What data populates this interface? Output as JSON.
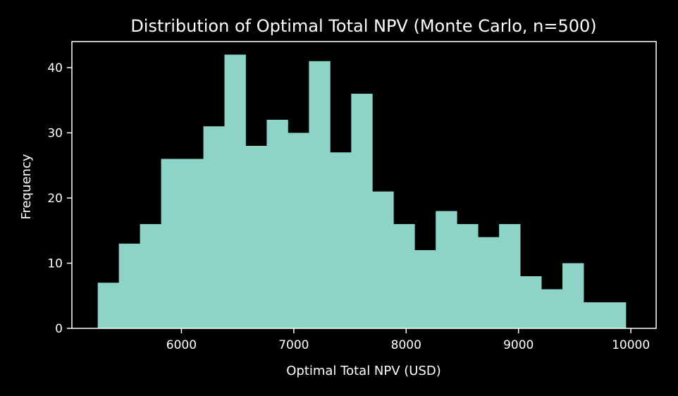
{
  "colors": {
    "background": "#000000",
    "bar": "#8dd3c7",
    "text": "#ffffff",
    "axis": "#ffffff"
  },
  "chart_data": {
    "type": "bar",
    "subtype": "histogram",
    "title": "Distribution of Optimal Total NPV (Monte Carlo, n=500)",
    "xlabel": "Optimal Total NPV (USD)",
    "ylabel": "Frequency",
    "xlim": [
      5025,
      10225
    ],
    "ylim": [
      0,
      44
    ],
    "xticks": [
      6000,
      7000,
      8000,
      9000,
      10000
    ],
    "xtick_labels": [
      "6000",
      "7000",
      "8000",
      "9000",
      "10000"
    ],
    "yticks": [
      0,
      10,
      20,
      30,
      40
    ],
    "ytick_labels": [
      "0",
      "10",
      "20",
      "30",
      "40"
    ],
    "grid": false,
    "bins": [
      {
        "x0": 5255,
        "x1": 5443,
        "count": 7
      },
      {
        "x0": 5443,
        "x1": 5631,
        "count": 13
      },
      {
        "x0": 5631,
        "x1": 5819,
        "count": 16
      },
      {
        "x0": 5819,
        "x1": 6007,
        "count": 26
      },
      {
        "x0": 6007,
        "x1": 6195,
        "count": 26
      },
      {
        "x0": 6195,
        "x1": 6383,
        "count": 31
      },
      {
        "x0": 6383,
        "x1": 6571,
        "count": 42
      },
      {
        "x0": 6571,
        "x1": 6759,
        "count": 28
      },
      {
        "x0": 6759,
        "x1": 6947,
        "count": 32
      },
      {
        "x0": 6947,
        "x1": 7135,
        "count": 30
      },
      {
        "x0": 7135,
        "x1": 7323,
        "count": 41
      },
      {
        "x0": 7323,
        "x1": 7511,
        "count": 27
      },
      {
        "x0": 7511,
        "x1": 7699,
        "count": 36
      },
      {
        "x0": 7699,
        "x1": 7887,
        "count": 21
      },
      {
        "x0": 7887,
        "x1": 8075,
        "count": 16
      },
      {
        "x0": 8075,
        "x1": 8263,
        "count": 12
      },
      {
        "x0": 8263,
        "x1": 8451,
        "count": 18
      },
      {
        "x0": 8451,
        "x1": 8639,
        "count": 16
      },
      {
        "x0": 8639,
        "x1": 8827,
        "count": 14
      },
      {
        "x0": 8827,
        "x1": 9015,
        "count": 16
      },
      {
        "x0": 9015,
        "x1": 9203,
        "count": 8
      },
      {
        "x0": 9203,
        "x1": 9391,
        "count": 6
      },
      {
        "x0": 9391,
        "x1": 9579,
        "count": 10
      },
      {
        "x0": 9579,
        "x1": 9767,
        "count": 4
      },
      {
        "x0": 9767,
        "x1": 9955,
        "count": 4
      }
    ]
  }
}
